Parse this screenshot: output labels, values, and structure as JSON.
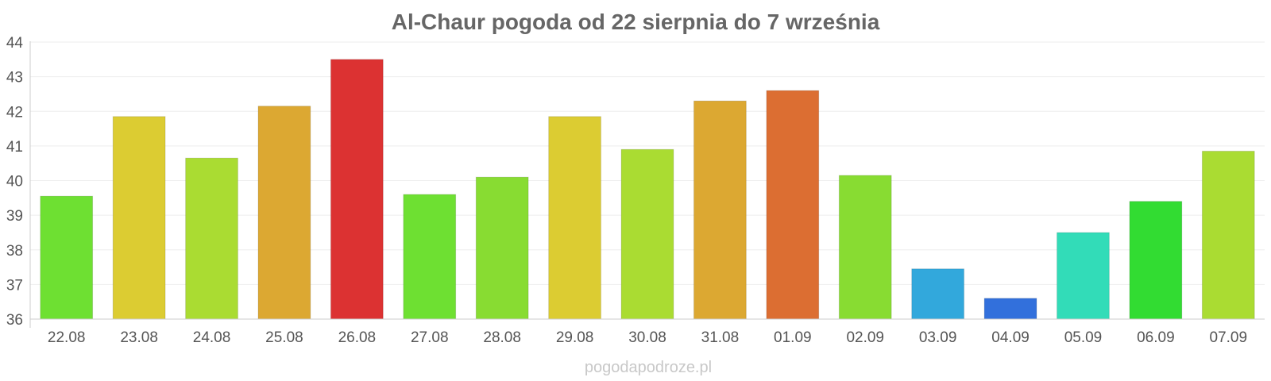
{
  "chart_data": {
    "type": "bar",
    "title": "Al-Chaur pogoda od 22 sierpnia do 7 września",
    "xlabel": "",
    "ylabel": "",
    "categories": [
      "22.08",
      "23.08",
      "24.08",
      "25.08",
      "26.08",
      "27.08",
      "28.08",
      "29.08",
      "30.08",
      "31.08",
      "01.09",
      "02.09",
      "03.09",
      "04.09",
      "05.09",
      "06.09",
      "07.09"
    ],
    "values": [
      39.55,
      41.85,
      40.65,
      42.15,
      43.5,
      39.6,
      40.1,
      41.85,
      40.9,
      42.3,
      42.6,
      40.15,
      37.45,
      36.6,
      38.5,
      39.4,
      40.85
    ],
    "colors": [
      "#6ee032",
      "#dccc32",
      "#aadc32",
      "#dca832",
      "#dc3232",
      "#6ee032",
      "#88dc32",
      "#dccc32",
      "#aadc32",
      "#dca832",
      "#dc6e32",
      "#88dc32",
      "#32a8dc",
      "#3270dc",
      "#32dcb8",
      "#32dc32",
      "#aadc32"
    ],
    "ylim": [
      36,
      44
    ],
    "yticks": [
      "36",
      "37",
      "38",
      "39",
      "40",
      "41",
      "42",
      "43",
      "44"
    ],
    "grid": true,
    "legend": "none"
  },
  "watermark": "pogodapodroze.pl"
}
